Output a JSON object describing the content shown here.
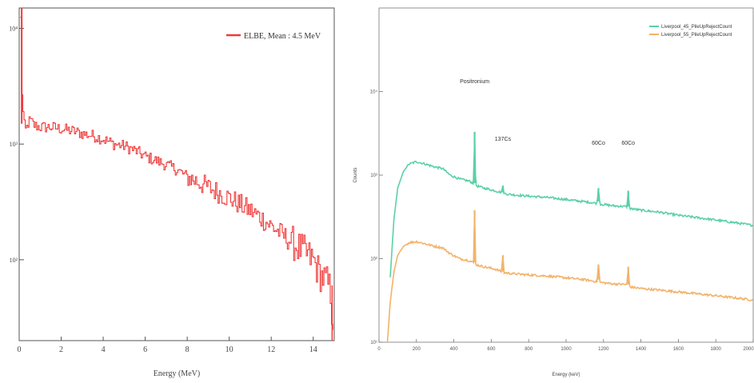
{
  "chart_data": [
    {
      "type": "line",
      "title": "",
      "xlabel": "Energy (MeV)",
      "ylabel": "",
      "xlim": [
        0,
        15
      ],
      "ylim": [
        20,
        15000
      ],
      "yscale": "log",
      "x_ticks": [
        "0",
        "2",
        "4",
        "6",
        "8",
        "10",
        "12",
        "14"
      ],
      "y_ticks": [
        "10²",
        "10³",
        "10⁴"
      ],
      "legend_position": "top-right",
      "series": [
        {
          "name": "ELBE, Mean : 4.5 MeV",
          "color": "#ef3b3b",
          "points": [
            [
              0.05,
              12000
            ],
            [
              0.1,
              3000
            ],
            [
              0.2,
              1500
            ],
            [
              0.3,
              1300
            ],
            [
              0.4,
              1500
            ],
            [
              0.5,
              1600
            ],
            [
              0.7,
              1450
            ],
            [
              1,
              1400
            ],
            [
              1.5,
              1400
            ],
            [
              2,
              1350
            ],
            [
              2.5,
              1300
            ],
            [
              3,
              1230
            ],
            [
              3.5,
              1180
            ],
            [
              4,
              1100
            ],
            [
              4.5,
              1000
            ],
            [
              5,
              960
            ],
            [
              5.5,
              880
            ],
            [
              6,
              780
            ],
            [
              6.5,
              720
            ],
            [
              7,
              660
            ],
            [
              7.5,
              600
            ],
            [
              8,
              520
            ],
            [
              8.5,
              470
            ],
            [
              9,
              420
            ],
            [
              9.5,
              380
            ],
            [
              10,
              340
            ],
            [
              10.5,
              300
            ],
            [
              11,
              265
            ],
            [
              11.5,
              230
            ],
            [
              12,
              195
            ],
            [
              12.5,
              165
            ],
            [
              13,
              140
            ],
            [
              13.5,
              118
            ],
            [
              14,
              98
            ],
            [
              14.3,
              75
            ],
            [
              14.6,
              65
            ],
            [
              14.8,
              55
            ],
            [
              14.9,
              30
            ]
          ]
        }
      ]
    },
    {
      "type": "line",
      "title": "",
      "xlabel": "Energy (keV)",
      "ylabel": "Counts",
      "xlim": [
        0,
        2000
      ],
      "ylim": [
        10,
        100000
      ],
      "yscale": "log",
      "x_ticks": [
        "0",
        "200",
        "400",
        "600",
        "800",
        "1000",
        "1200",
        "1400",
        "1600",
        "1800",
        "2000"
      ],
      "y_ticks": [
        "10¹",
        "10²",
        "10³",
        "10⁴"
      ],
      "legend_position": "top-right",
      "annotations": [
        {
          "text": "Positronium",
          "x": 511
        },
        {
          "text": "137Cs",
          "x": 662
        },
        {
          "text": "60Co",
          "x": 1173
        },
        {
          "text": "60Co",
          "x": 1332
        }
      ],
      "series": [
        {
          "name": "Liverpool_45_PileUpRejectCount",
          "color": "#5ad1a6",
          "points": [
            [
              60,
              60
            ],
            [
              80,
              300
            ],
            [
              100,
              700
            ],
            [
              130,
              1100
            ],
            [
              160,
              1350
            ],
            [
              200,
              1450
            ],
            [
              250,
              1350
            ],
            [
              300,
              1250
            ],
            [
              340,
              1200
            ],
            [
              380,
              1000
            ],
            [
              430,
              900
            ],
            [
              480,
              850
            ],
            [
              505,
              800
            ],
            [
              511,
              3300
            ],
            [
              517,
              750
            ],
            [
              560,
              700
            ],
            [
              620,
              650
            ],
            [
              655,
              620
            ],
            [
              662,
              750
            ],
            [
              669,
              600
            ],
            [
              720,
              580
            ],
            [
              800,
              560
            ],
            [
              900,
              540
            ],
            [
              1000,
              510
            ],
            [
              1100,
              480
            ],
            [
              1165,
              460
            ],
            [
              1173,
              700
            ],
            [
              1181,
              450
            ],
            [
              1250,
              430
            ],
            [
              1325,
              420
            ],
            [
              1332,
              650
            ],
            [
              1339,
              400
            ],
            [
              1400,
              380
            ],
            [
              1500,
              360
            ],
            [
              1600,
              330
            ],
            [
              1700,
              310
            ],
            [
              1800,
              290
            ],
            [
              1900,
              270
            ],
            [
              2000,
              250
            ]
          ]
        },
        {
          "name": "Liverpool_55_PileUpRejectCount",
          "color": "#f2b36a",
          "points": [
            [
              45,
              10
            ],
            [
              60,
              30
            ],
            [
              80,
              70
            ],
            [
              100,
              110
            ],
            [
              130,
              140
            ],
            [
              160,
              155
            ],
            [
              200,
              160
            ],
            [
              250,
              150
            ],
            [
              300,
              140
            ],
            [
              340,
              135
            ],
            [
              380,
              115
            ],
            [
              430,
              100
            ],
            [
              480,
              95
            ],
            [
              505,
              90
            ],
            [
              511,
              380
            ],
            [
              517,
              85
            ],
            [
              560,
              80
            ],
            [
              620,
              75
            ],
            [
              655,
              70
            ],
            [
              662,
              110
            ],
            [
              669,
              68
            ],
            [
              720,
              66
            ],
            [
              800,
              64
            ],
            [
              900,
              62
            ],
            [
              1000,
              59
            ],
            [
              1100,
              56
            ],
            [
              1165,
              53
            ],
            [
              1173,
              85
            ],
            [
              1181,
              52
            ],
            [
              1250,
              50
            ],
            [
              1325,
              49
            ],
            [
              1332,
              80
            ],
            [
              1339,
              46
            ],
            [
              1400,
              44
            ],
            [
              1500,
              42
            ],
            [
              1600,
              40
            ],
            [
              1700,
              38
            ],
            [
              1800,
              36
            ],
            [
              1900,
              34
            ],
            [
              2000,
              32
            ]
          ]
        }
      ]
    }
  ]
}
